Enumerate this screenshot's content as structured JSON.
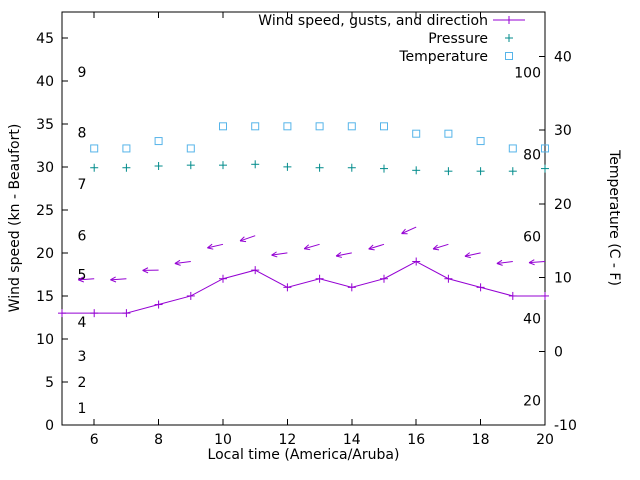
{
  "chart_data": {
    "type": "line",
    "title": "",
    "xlabel": "Local time (America/Aruba)",
    "ylabel_left": "Wind speed (kn - Beaufort)",
    "ylabel_right": "Temperature (C - F)",
    "xlim": [
      5,
      20
    ],
    "x_ticks": [
      6,
      8,
      10,
      12,
      14,
      16,
      18,
      20
    ],
    "ylim_left": [
      0,
      48
    ],
    "yticks_left": [
      0,
      5,
      10,
      15,
      20,
      25,
      30,
      35,
      40,
      45
    ],
    "ylim_right": [
      -10,
      46
    ],
    "yticks_right": [
      -10,
      0,
      10,
      20,
      30,
      40
    ],
    "grid": false,
    "legend_position": "top-right-inside",
    "beaufort_scale": [
      {
        "label": "1",
        "kn": 2
      },
      {
        "label": "2",
        "kn": 5
      },
      {
        "label": "3",
        "kn": 8
      },
      {
        "label": "4",
        "kn": 12
      },
      {
        "label": "5",
        "kn": 17.5
      },
      {
        "label": "6",
        "kn": 22
      },
      {
        "label": "7",
        "kn": 28
      },
      {
        "label": "8",
        "kn": 34
      },
      {
        "label": "9",
        "kn": 41
      }
    ],
    "fahrenheit_scale": [
      {
        "label": "20",
        "f": 20
      },
      {
        "label": "40",
        "f": 40
      },
      {
        "label": "60",
        "f": 60
      },
      {
        "label": "80",
        "f": 80
      },
      {
        "label": "100",
        "f": 100
      }
    ],
    "series": [
      {
        "id": "wind",
        "name": "Wind speed, gusts, and direction",
        "color": "#9400d3",
        "axis": "left",
        "line": true,
        "marker": "plus",
        "x": [
          5,
          6,
          7,
          8,
          9,
          10,
          11,
          12,
          13,
          14,
          15,
          16,
          17,
          18,
          19,
          20
        ],
        "values": [
          13,
          13,
          13,
          14,
          15,
          17,
          18,
          16,
          17,
          16,
          17,
          19,
          17,
          16,
          15,
          15
        ],
        "gust_x": [
          6,
          7,
          8,
          9,
          10,
          11,
          12,
          13,
          14,
          15,
          16,
          17,
          18,
          19,
          20
        ],
        "gusts": [
          17,
          17,
          18,
          19,
          21,
          22,
          20,
          21,
          20,
          21,
          23,
          21,
          20,
          19,
          19
        ],
        "gust_dir_deg": [
          184,
          184,
          181,
          187,
          193,
          199,
          188,
          196,
          191,
          197,
          204,
          197,
          192,
          187,
          184
        ]
      },
      {
        "id": "pressure",
        "name": "Pressure",
        "color": "#008b8b",
        "axis": "left",
        "line": false,
        "marker": "plus",
        "x": [
          6,
          7,
          8,
          9,
          10,
          11,
          12,
          13,
          14,
          15,
          16,
          17,
          18,
          19,
          20
        ],
        "values": [
          29.9,
          29.9,
          30.1,
          30.2,
          30.2,
          30.3,
          30.0,
          29.9,
          29.9,
          29.8,
          29.6,
          29.5,
          29.5,
          29.5,
          29.8
        ]
      },
      {
        "id": "temperature",
        "name": "Temperature",
        "color": "#56b4e9",
        "axis": "right",
        "line": false,
        "marker": "square",
        "x": [
          6,
          7,
          8,
          9,
          10,
          11,
          12,
          13,
          14,
          15,
          16,
          17,
          18,
          19,
          20
        ],
        "values": [
          27.5,
          27.5,
          28.5,
          27.5,
          30.5,
          30.5,
          30.5,
          30.5,
          30.5,
          30.5,
          29.5,
          29.5,
          28.5,
          27.5,
          27.5
        ]
      }
    ]
  }
}
